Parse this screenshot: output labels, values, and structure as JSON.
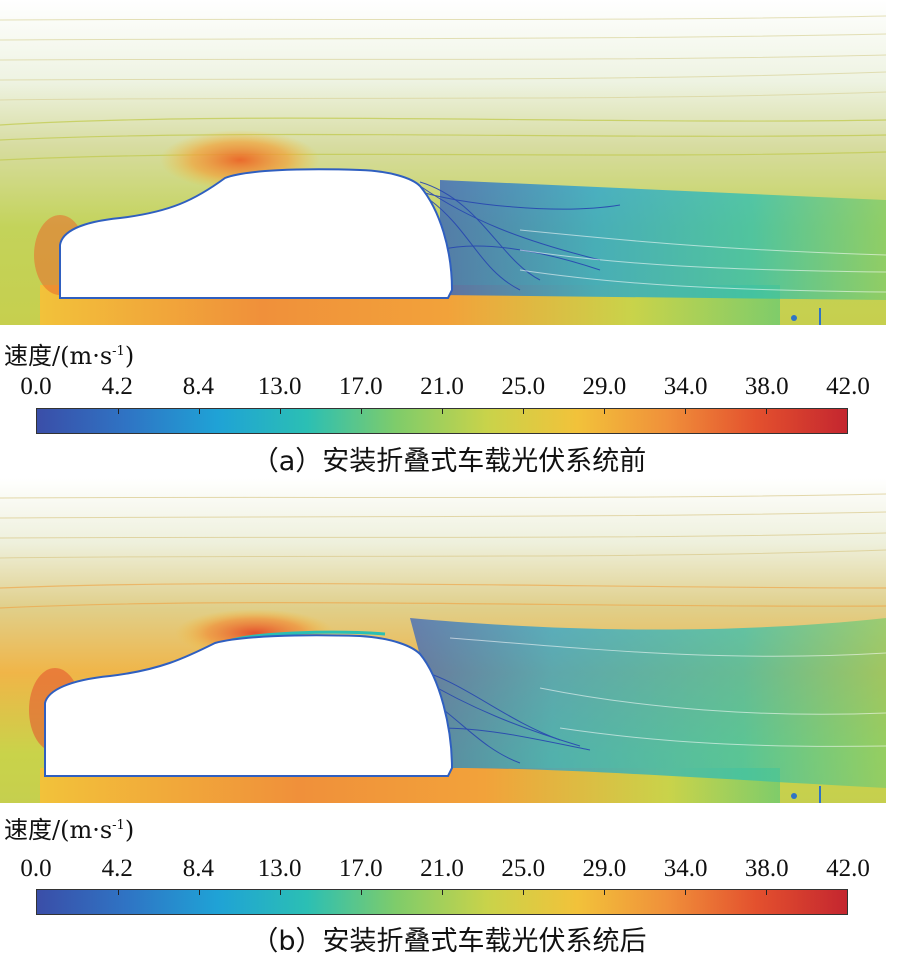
{
  "panels": [
    {
      "id": "a",
      "legend_title": "速度/(m·s",
      "legend_sup": "-1",
      "legend_close": ")",
      "ticks": [
        "0.0",
        "4.2",
        "8.4",
        "13.0",
        "17.0",
        "21.0",
        "25.0",
        "29.0",
        "34.0",
        "38.0",
        "42.0"
      ],
      "caption": "（a）安装折叠式车载光伏系统前"
    },
    {
      "id": "b",
      "legend_title": "速度/(m·s",
      "legend_sup": "-1",
      "legend_close": ")",
      "ticks": [
        "0.0",
        "4.2",
        "8.4",
        "13.0",
        "17.0",
        "21.0",
        "25.0",
        "29.0",
        "34.0",
        "38.0",
        "42.0"
      ],
      "caption": "（b）安装折叠式车载光伏系统后"
    }
  ],
  "colorbar": {
    "min": 0.0,
    "max": 42.0,
    "stops": [
      "#3a4ea8",
      "#2f74c4",
      "#1fa2d6",
      "#2bbfb4",
      "#7fcc6a",
      "#c9d34a",
      "#f2c23a",
      "#f0903a",
      "#e3502e",
      "#c4262f"
    ]
  }
}
